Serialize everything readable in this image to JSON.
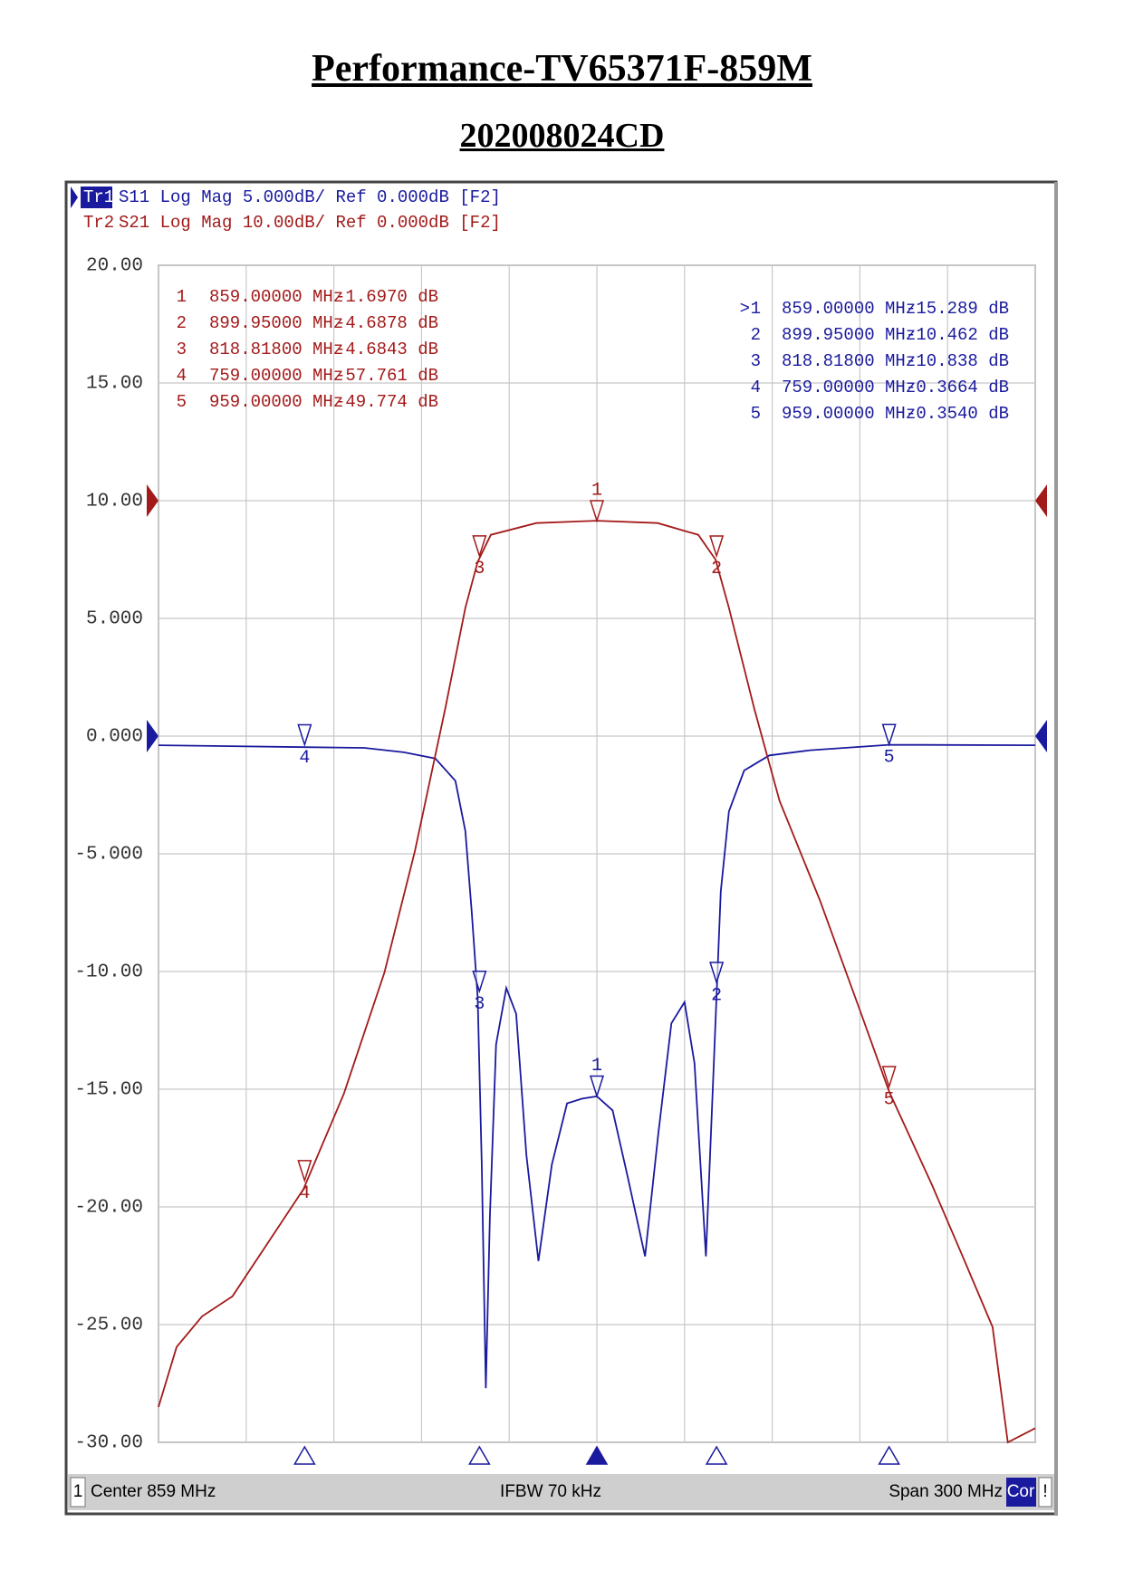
{
  "title": "Performance-TV65371F-859M",
  "subtitle": "202008024CD",
  "traces": [
    {
      "id": "Tr1",
      "text": "S11 Log Mag 5.000dB/ Ref 0.000dB [F2]"
    },
    {
      "id": "Tr2",
      "text": "S21 Log Mag 10.00dB/ Ref 0.000dB [F2]"
    }
  ],
  "status": {
    "channel": "1",
    "center": "Center 859 MHz",
    "ifbw": "IFBW 70 kHz",
    "span": "Span 300 MHz",
    "cor": "Cor",
    "flag": "!"
  },
  "chart_data": {
    "type": "line",
    "xlim": [
      709,
      1009
    ],
    "xticks": [
      709,
      739,
      769,
      799,
      829,
      859,
      889,
      919,
      949,
      979,
      1009
    ],
    "ylim": [
      -30,
      20
    ],
    "yticks": [
      {
        "value": 20,
        "label": "20.00"
      },
      {
        "value": 15,
        "label": "15.00"
      },
      {
        "value": 10,
        "label": "10.00"
      },
      {
        "value": 5,
        "label": "5.000"
      },
      {
        "value": 0,
        "label": "0.000"
      },
      {
        "value": -5,
        "label": "-5.000"
      },
      {
        "value": -10,
        "label": "-10.00"
      },
      {
        "value": -15,
        "label": "-15.00"
      },
      {
        "value": -20,
        "label": "-20.00"
      },
      {
        "value": -25,
        "label": "-25.00"
      },
      {
        "value": -30,
        "label": "-30.00"
      }
    ],
    "y2lim": [
      -80,
      20
    ],
    "grid": true,
    "series": [
      {
        "name": "S11",
        "color": "#1a1a9e",
        "x": [
          709,
          758.6,
          779.4,
          793,
          803.7,
          810.6,
          814,
          816.2,
          818.2,
          819.6,
          821,
          822.4,
          824.5,
          828,
          831.4,
          834.9,
          839,
          843.6,
          848.8,
          854,
          859,
          864.4,
          869.5,
          875.5,
          880,
          884.5,
          889,
          892.4,
          896.3,
          898.3,
          900,
          901.4,
          904.2,
          909.4,
          918,
          932,
          959,
          1009
        ],
        "values": [
          -0.39,
          -0.47,
          -0.5,
          -0.69,
          -0.95,
          -1.9,
          -4.04,
          -7.5,
          -11.1,
          -18.2,
          -27.7,
          -20.4,
          -13.1,
          -10.7,
          -11.8,
          -17.8,
          -22.3,
          -18.2,
          -15.6,
          -15.4,
          -15.3,
          -15.9,
          -18.7,
          -22.1,
          -16.9,
          -12.2,
          -11.3,
          -13.9,
          -22.1,
          -16.1,
          -10.9,
          -6.6,
          -3.2,
          -1.46,
          -0.82,
          -0.6,
          -0.37,
          -0.39
        ],
        "active_symbol": ">",
        "markers": [
          {
            "name": "1",
            "x": 859,
            "x_label": "859.00000 MHz",
            "value": -15.289,
            "value_label": "-15.289 dB"
          },
          {
            "name": "2",
            "x": 899.95,
            "x_label": "899.95000 MHz",
            "value": -10.462,
            "value_label": "-10.462 dB"
          },
          {
            "name": "3",
            "x": 818.818,
            "x_label": "818.81800 MHz",
            "value": -10.838,
            "value_label": "-10.838 dB"
          },
          {
            "name": "4",
            "x": 759,
            "x_label": "759.00000 MHz",
            "value": -0.3664,
            "value_label": "-0.3664 dB"
          },
          {
            "name": "5",
            "x": 959,
            "x_label": "959.00000 MHz",
            "value": -0.354,
            "value_label": "-0.3540 dB"
          }
        ]
      },
      {
        "name": "S21",
        "color": "#a31a1a",
        "axis": "y2",
        "x": [
          709,
          715.2,
          723.9,
          734.3,
          744.7,
          758.6,
          772.4,
          786.3,
          796.7,
          807.1,
          814,
          818.2,
          822.7,
          838.3,
          859,
          879.8,
          893.7,
          899.6,
          904.2,
          912.9,
          921.5,
          935.4,
          949.3,
          959,
          973.6,
          984,
          994.4,
          999.6,
          1009
        ],
        "values": [
          -77,
          -71.9,
          -69.3,
          -67.6,
          -63.7,
          -58.5,
          -50.4,
          -40.1,
          -29.8,
          -17.7,
          -9.1,
          -5.2,
          -2.9,
          -1.9,
          -1.7,
          -1.9,
          -2.9,
          -5.0,
          -9.1,
          -17.7,
          -25.5,
          -34,
          -43.5,
          -50.2,
          -58.1,
          -64.1,
          -70.2,
          -80,
          -78.8
        ],
        "markers": [
          {
            "name": "1",
            "x": 859,
            "x_label": "859.00000 MHz",
            "value": -1.697,
            "value_label": "-1.6970 dB"
          },
          {
            "name": "2",
            "x": 899.95,
            "x_label": "899.95000 MHz",
            "value": -4.6878,
            "value_label": "-4.6878 dB"
          },
          {
            "name": "3",
            "x": 818.818,
            "x_label": "818.81800 MHz",
            "value": -4.6843,
            "value_label": "-4.6843 dB"
          },
          {
            "name": "4",
            "x": 759,
            "x_label": "759.00000 MHz",
            "value": -57.761,
            "value_label": "-57.761 dB"
          },
          {
            "name": "5",
            "x": 959,
            "x_label": "959.00000 MHz",
            "value": -49.774,
            "value_label": "-49.774 dB"
          }
        ]
      }
    ]
  }
}
